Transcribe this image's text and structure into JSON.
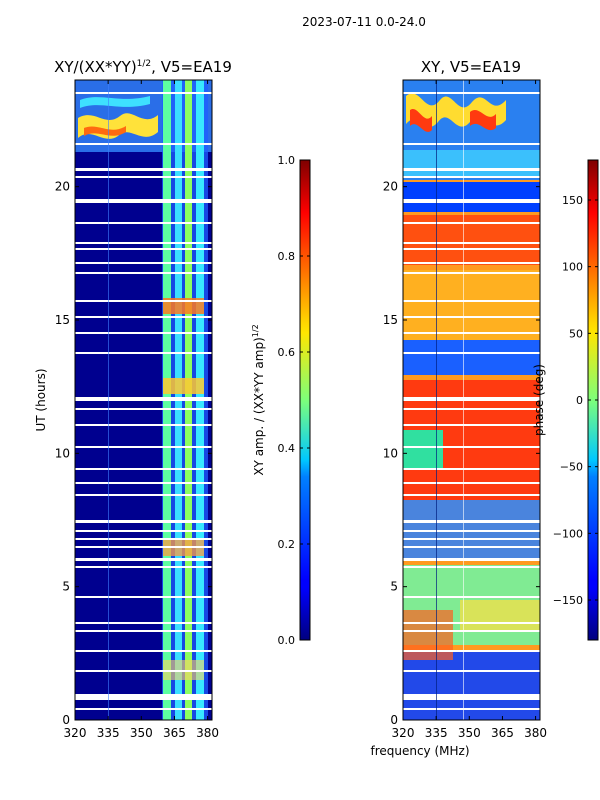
{
  "suptitle": "2023-07-11 0.0-24.0",
  "chart_data": [
    {
      "type": "heatmap",
      "title_prefix": "XY/(XX*YY)",
      "title_exp": "1/2",
      "title_suffix": ", V5=EA19",
      "ylabel": "UT (hours)",
      "xlabel": "",
      "xlim": [
        320,
        382
      ],
      "ylim": [
        0,
        24
      ],
      "xticks": [
        "320",
        "335",
        "350",
        "365",
        "380"
      ],
      "yticks": [
        "0",
        "5",
        "10",
        "15",
        "20"
      ],
      "colorbar": {
        "label_prefix": "XY amp. / (XX*YY amp)",
        "label_exp": "1/2",
        "range": [
          0.0,
          1.0
        ],
        "ticks": [
          "0.0",
          "0.2",
          "0.4",
          "0.6",
          "0.8",
          "1.0"
        ]
      }
    },
    {
      "type": "heatmap",
      "title": "XY, V5=EA19",
      "ylabel": "",
      "xlabel": "frequency (MHz)",
      "xlim": [
        320,
        382
      ],
      "ylim": [
        0,
        24
      ],
      "xticks": [
        "320",
        "335",
        "350",
        "365",
        "380"
      ],
      "yticks": [
        "0",
        "5",
        "10",
        "15",
        "20"
      ],
      "colorbar": {
        "label": "phase (deg)",
        "range": [
          -180,
          180
        ],
        "ticks": [
          "−150",
          "−100",
          "−50",
          "0",
          "50",
          "100",
          "150"
        ]
      }
    }
  ]
}
